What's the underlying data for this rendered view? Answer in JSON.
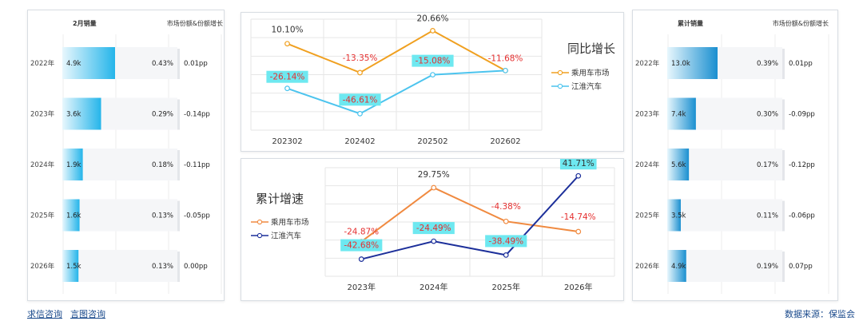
{
  "left_table": {
    "header_sales": "2月销量",
    "header_share": "市场份额&份额增长",
    "color": "#25b5ea",
    "rows": [
      {
        "year": "2022年",
        "sales_label": "4.9k",
        "sales": 4.9,
        "share": "0.43%",
        "change": "0.01pp"
      },
      {
        "year": "2023年",
        "sales_label": "3.6k",
        "sales": 3.6,
        "share": "0.29%",
        "change": "-0.14pp"
      },
      {
        "year": "2024年",
        "sales_label": "1.9k",
        "sales": 1.9,
        "share": "0.18%",
        "change": "-0.11pp"
      },
      {
        "year": "2025年",
        "sales_label": "1.6k",
        "sales": 1.6,
        "share": "0.13%",
        "change": "-0.05pp"
      },
      {
        "year": "2026年",
        "sales_label": "1.5k",
        "sales": 1.5,
        "share": "0.13%",
        "change": "0.00pp"
      }
    ]
  },
  "right_table": {
    "header_sales": "累计销量",
    "header_share": "市场份额&份额增长",
    "color": "#1a8fd0",
    "rows": [
      {
        "year": "2022年",
        "sales_label": "13.0k",
        "sales": 13.0,
        "share": "0.39%",
        "change": "0.01pp"
      },
      {
        "year": "2023年",
        "sales_label": "7.4k",
        "sales": 7.4,
        "share": "0.30%",
        "change": "-0.09pp"
      },
      {
        "year": "2024年",
        "sales_label": "5.6k",
        "sales": 5.6,
        "share": "0.17%",
        "change": "-0.12pp"
      },
      {
        "year": "2025年",
        "sales_label": "3.5k",
        "sales": 3.5,
        "share": "0.11%",
        "change": "-0.06pp"
      },
      {
        "year": "2026年",
        "sales_label": "4.9k",
        "sales": 4.9,
        "share": "0.19%",
        "change": "0.07pp"
      }
    ]
  },
  "chart_data": [
    {
      "type": "line",
      "title": "同比增长",
      "categories": [
        "202302",
        "202402",
        "202502",
        "202602"
      ],
      "ylim": [
        -60,
        30
      ],
      "series": [
        {
          "name": "乘用车市场",
          "color": "#f0a020",
          "values": [
            10.1,
            -13.35,
            20.66,
            -11.68
          ],
          "labels": [
            "10.10%",
            "-13.35%",
            "20.66%",
            "-11.68%"
          ]
        },
        {
          "name": "江淮汽车",
          "color": "#4cc4ee",
          "values": [
            -26.14,
            -46.61,
            -15.08,
            -11.68
          ],
          "labels": [
            "-26.14%",
            "-46.61%",
            "-15.08%",
            ""
          ]
        }
      ],
      "legend": "right"
    },
    {
      "type": "line",
      "title": "累计增速",
      "categories": [
        "2023年",
        "2024年",
        "2025年",
        "2026年"
      ],
      "ylim": [
        -60,
        50
      ],
      "series": [
        {
          "name": "乘用车市场",
          "color": "#f08a40",
          "values": [
            -24.87,
            29.75,
            -4.38,
            -14.74
          ],
          "labels": [
            "-24.87%",
            "29.75%",
            "-4.38%",
            "-14.74%"
          ]
        },
        {
          "name": "江淮汽车",
          "color": "#1c2f9a",
          "values": [
            -42.68,
            -24.49,
            -38.49,
            41.71
          ],
          "labels": [
            "-42.68%",
            "-24.49%",
            "-38.49%",
            "41.71%"
          ]
        }
      ],
      "legend": "left"
    }
  ],
  "footer": {
    "link1": "求信咨询",
    "link2": "言图咨询",
    "source": "数据来源：保监会"
  }
}
